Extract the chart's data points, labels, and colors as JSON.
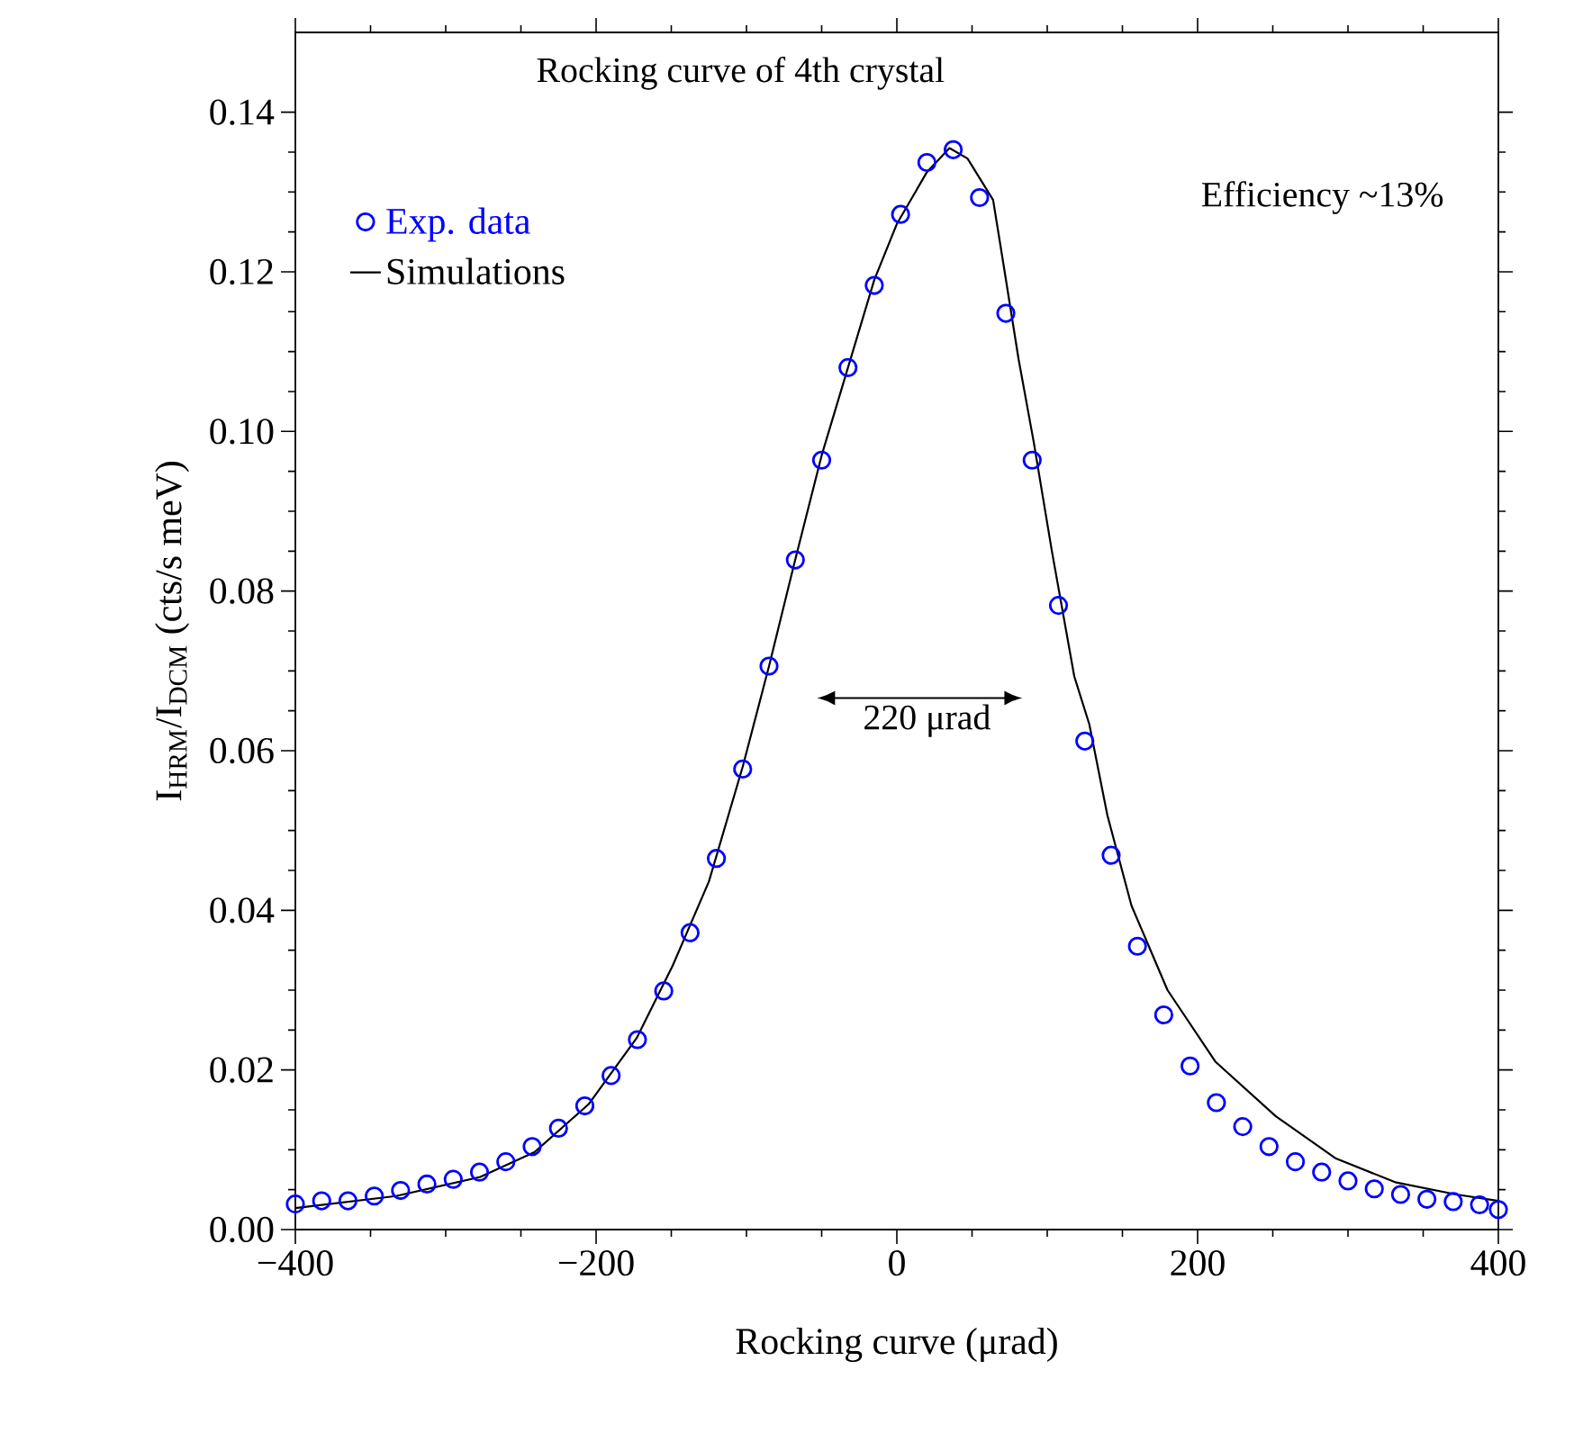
{
  "chart_data": {
    "type": "scatter",
    "title": "Rocking curve of 4th crystal",
    "xlabel": "Rocking curve (μrad)",
    "ylabel": "I$_{HRM}$/I$_{DCM}$ (cts/s meV)",
    "xlim": [
      -400,
      400
    ],
    "xticks": [
      {
        "value": -400,
        "label": "−400"
      },
      {
        "value": -200,
        "label": "−200"
      },
      0,
      200,
      400
    ],
    "ylim": [
      0,
      0.15
    ],
    "yticks": [
      {
        "value": 0,
        "label": "0.00"
      },
      {
        "value": 0.02,
        "label": "0.02"
      },
      {
        "value": 0.04,
        "label": "0.04"
      },
      {
        "value": 0.06,
        "label": "0.06"
      },
      {
        "value": 0.08,
        "label": "0.08"
      },
      {
        "value": 0.1,
        "label": "0.10"
      },
      {
        "value": 0.12,
        "label": "0.12"
      },
      {
        "value": 0.14,
        "label": "0.14"
      }
    ],
    "legend": "top left",
    "grid": false,
    "annotations": [
      "Efficiency ~13%",
      "220 μrad"
    ],
    "series": [
      {
        "name": "Exp. data",
        "marker": "circle",
        "color": "#0000ff",
        "x": [
          -400,
          -382.5,
          -365,
          -347.5,
          -330,
          -312.5,
          -295,
          -277.5,
          -260,
          -242.5,
          -225,
          -207.5,
          -190,
          -172.5,
          -155,
          -137.5,
          -120,
          -102.5,
          -85,
          -67.5,
          -50,
          -32.5,
          -15,
          2.5,
          20,
          37.5,
          55,
          72.5,
          90,
          107.5,
          125,
          142.5,
          160,
          177.5,
          195,
          212.5,
          230,
          247.5,
          265,
          282.5,
          300,
          317.5,
          335,
          352.5,
          370,
          387.5,
          400
        ],
        "values": [
          0.0032,
          0.0036,
          0.0036,
          0.0042,
          0.0049,
          0.0057,
          0.0063,
          0.0072,
          0.0085,
          0.0104,
          0.0127,
          0.0155,
          0.0193,
          0.0238,
          0.0299,
          0.0372,
          0.0465,
          0.0577,
          0.0706,
          0.0839,
          0.0964,
          0.108,
          0.1183,
          0.1272,
          0.1337,
          0.1353,
          0.1293,
          0.1148,
          0.0964,
          0.0782,
          0.0612,
          0.0469,
          0.0355,
          0.0269,
          0.0205,
          0.0159,
          0.0129,
          0.0104,
          0.0085,
          0.0072,
          0.0061,
          0.0051,
          0.0044,
          0.0038,
          0.0035,
          0.0031,
          0.0025
        ]
      },
      {
        "name": "Simulations",
        "type": "line",
        "marker": "none",
        "line_style": "solid",
        "color": "#000000",
        "x": [
          -400,
          -333,
          -277,
          -241,
          -205,
          -173,
          -149,
          -125,
          -102.5,
          -85,
          -67.5,
          -50,
          -32.5,
          -15,
          0,
          20,
          35,
          47,
          64,
          70,
          81,
          91,
          103,
          118,
          128,
          140,
          156,
          180,
          212,
          252,
          292,
          332,
          372,
          400
        ],
        "values": [
          0.0027,
          0.0042,
          0.0066,
          0.0097,
          0.0157,
          0.024,
          0.0331,
          0.0436,
          0.058,
          0.0706,
          0.084,
          0.097,
          0.108,
          0.119,
          0.126,
          0.1325,
          0.1355,
          0.1342,
          0.129,
          0.122,
          0.109,
          0.0987,
          0.0851,
          0.0693,
          0.0633,
          0.0519,
          0.0406,
          0.03,
          0.021,
          0.0142,
          0.0089,
          0.0059,
          0.0044,
          0.0036
        ]
      }
    ]
  }
}
